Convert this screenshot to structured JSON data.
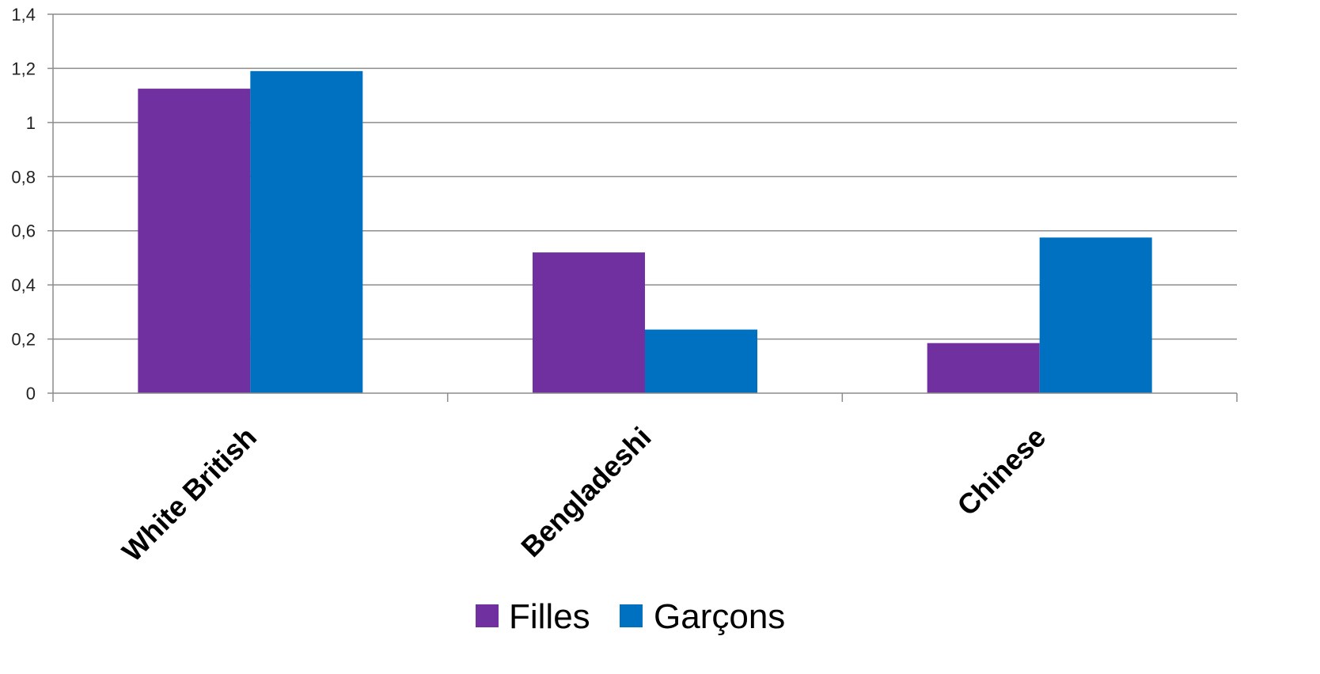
{
  "chart_data": {
    "type": "bar",
    "categories": [
      "White British",
      "Bengladeshi",
      "Chinese"
    ],
    "series": [
      {
        "name": "Filles",
        "color": "#7030A0",
        "values": [
          1.125,
          0.52,
          0.185
        ]
      },
      {
        "name": "Garçons",
        "color": "#0070C0",
        "values": [
          1.19,
          0.235,
          0.575
        ]
      }
    ],
    "ylim": [
      0,
      1.4
    ],
    "yticks": [
      0,
      0.2,
      0.4,
      0.6,
      0.8,
      1,
      1.2,
      1.4
    ],
    "ytick_labels": [
      "0",
      "0,2",
      "0,4",
      "0,6",
      "0,8",
      "1",
      "1,2",
      "1,4"
    ],
    "title": "",
    "xlabel": "",
    "ylabel": "",
    "grid": true,
    "legend_position": "bottom",
    "colors": {
      "grid": "#8c8c8c",
      "axis": "#8c8c8c"
    }
  }
}
